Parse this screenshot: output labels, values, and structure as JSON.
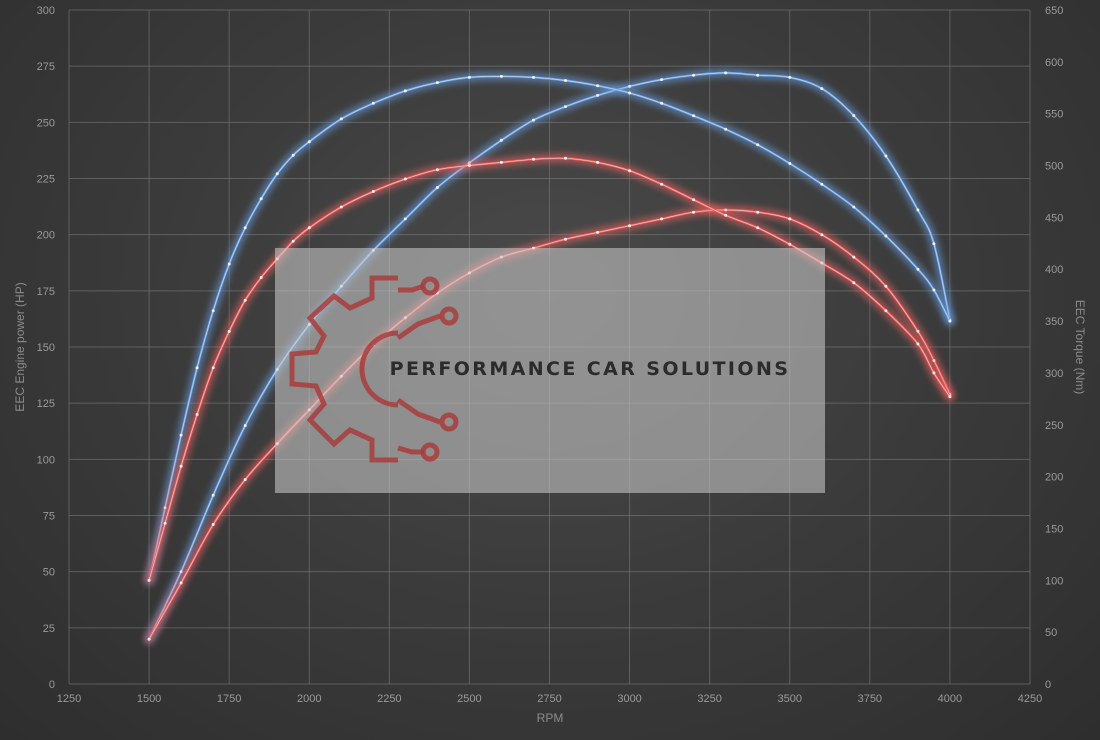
{
  "chart_data": {
    "type": "line",
    "xlabel": "RPM",
    "ylabel_left": "EEC Engine power (HP)",
    "ylabel_right": "EEC Torque (Nm)",
    "xlim": [
      1250,
      4250
    ],
    "xticks": [
      1250,
      1500,
      1750,
      2000,
      2250,
      2500,
      2750,
      3000,
      3250,
      3500,
      3750,
      4000,
      4250
    ],
    "ylim_left": [
      0,
      300
    ],
    "yticks_left": [
      0,
      25,
      50,
      75,
      100,
      125,
      150,
      175,
      200,
      225,
      250,
      275,
      300
    ],
    "ylim_right": [
      0,
      650
    ],
    "yticks_right": [
      0,
      50,
      100,
      150,
      200,
      250,
      300,
      350,
      400,
      450,
      500,
      550,
      600,
      650
    ],
    "grid": true,
    "legend": "none",
    "colors": {
      "blue": "#6a9fe0",
      "red": "#f06060"
    },
    "series": [
      {
        "axis": "left",
        "color": "blue",
        "x": [
          1500,
          1600,
          1700,
          1800,
          1900,
          2000,
          2100,
          2200,
          2300,
          2400,
          2500,
          2600,
          2700,
          2800,
          2900,
          3000,
          3100,
          3200,
          3300,
          3400,
          3500,
          3600,
          3700,
          3800,
          3900,
          3950,
          4000
        ],
        "y": [
          20,
          50,
          84,
          115,
          140,
          160,
          177,
          193,
          207,
          221,
          232,
          242,
          251,
          257,
          262,
          266,
          269,
          271,
          272,
          271,
          270,
          265,
          253,
          235,
          211,
          196,
          162
        ]
      },
      {
        "axis": "left",
        "color": "red",
        "x": [
          1500,
          1600,
          1700,
          1800,
          1900,
          2000,
          2100,
          2200,
          2300,
          2400,
          2500,
          2600,
          2700,
          2800,
          2900,
          3000,
          3100,
          3200,
          3300,
          3400,
          3500,
          3600,
          3700,
          3800,
          3900,
          3950,
          4000
        ],
        "y": [
          20,
          45,
          71,
          91,
          107,
          122,
          137,
          151,
          163,
          174,
          183,
          190,
          194,
          198,
          201,
          204,
          207,
          210,
          211,
          210,
          207,
          200,
          190,
          177,
          157,
          144,
          129
        ]
      },
      {
        "axis": "right",
        "color": "blue",
        "x": [
          1500,
          1550,
          1600,
          1650,
          1700,
          1750,
          1800,
          1850,
          1900,
          1950,
          2000,
          2100,
          2200,
          2300,
          2400,
          2500,
          2600,
          2700,
          2800,
          2900,
          3000,
          3100,
          3200,
          3300,
          3400,
          3500,
          3600,
          3700,
          3800,
          3900,
          3950,
          4000
        ],
        "y": [
          100,
          170,
          240,
          305,
          360,
          405,
          440,
          468,
          492,
          510,
          523,
          545,
          560,
          572,
          580,
          585,
          586,
          585,
          582,
          577,
          570,
          560,
          548,
          535,
          520,
          502,
          482,
          460,
          432,
          400,
          380,
          350
        ]
      },
      {
        "axis": "right",
        "color": "red",
        "x": [
          1500,
          1550,
          1600,
          1650,
          1700,
          1750,
          1800,
          1850,
          1900,
          1950,
          2000,
          2100,
          2200,
          2300,
          2400,
          2500,
          2600,
          2700,
          2800,
          2900,
          3000,
          3100,
          3200,
          3300,
          3400,
          3500,
          3600,
          3700,
          3800,
          3900,
          3950,
          4000
        ],
        "y": [
          100,
          155,
          210,
          260,
          305,
          340,
          370,
          392,
          410,
          427,
          440,
          460,
          475,
          487,
          496,
          500,
          503,
          506,
          507,
          503,
          495,
          482,
          467,
          452,
          440,
          424,
          406,
          387,
          360,
          328,
          300,
          277
        ]
      }
    ]
  },
  "watermark": {
    "text": "PERFORMANCE CAR SOLUTIONS"
  }
}
